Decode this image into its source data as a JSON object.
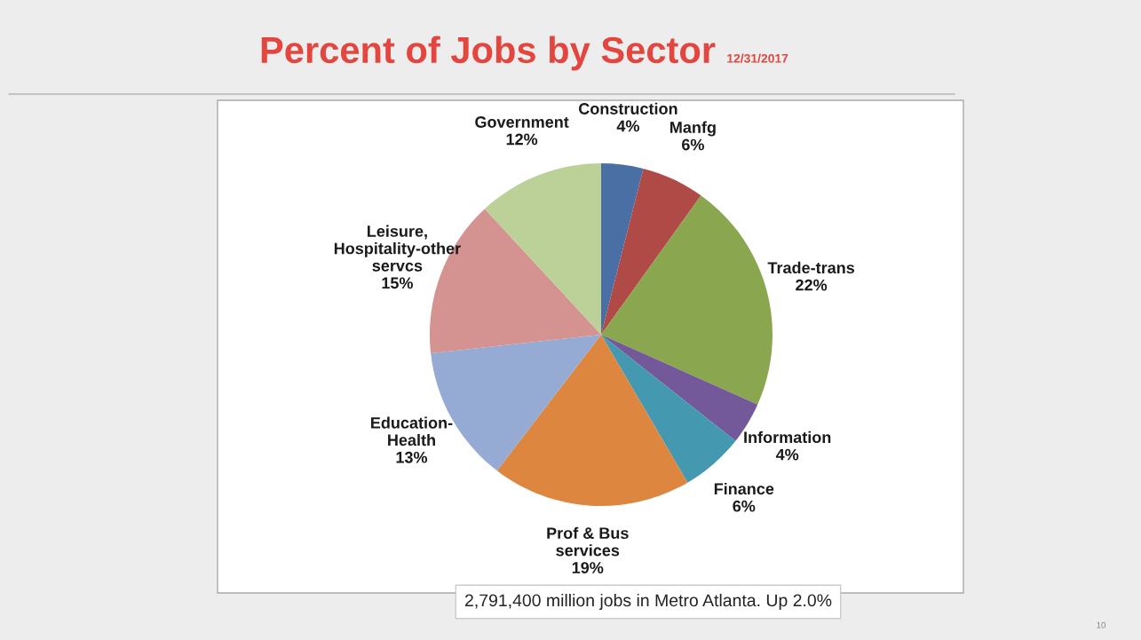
{
  "chart_data": {
    "type": "pie",
    "title": "Percent of Jobs by Sector",
    "subtitle": "12/31/2017",
    "categories": [
      "Construction",
      "Manfg",
      "Trade-trans",
      "Information",
      "Finance",
      "Prof & Bus\nservices",
      "Education-\nHealth",
      "Leisure,\nHospitality-other\nservcs",
      "Government"
    ],
    "values": [
      4,
      6,
      22,
      4,
      6,
      19,
      13,
      15,
      12
    ],
    "value_labels": [
      "4%",
      "6%",
      "22%",
      "4%",
      "6%",
      "19%",
      "13%",
      "15%",
      "12%"
    ],
    "colors": [
      "#4a6fa5",
      "#b04a47",
      "#8aa64e",
      "#73599a",
      "#4499b0",
      "#dc8640",
      "#95abd3",
      "#d49291",
      "#bcd198"
    ],
    "legend": false,
    "annotations": [
      "2,791,400 million jobs in Metro Atlanta. Up 2.0%",
      "10"
    ]
  }
}
